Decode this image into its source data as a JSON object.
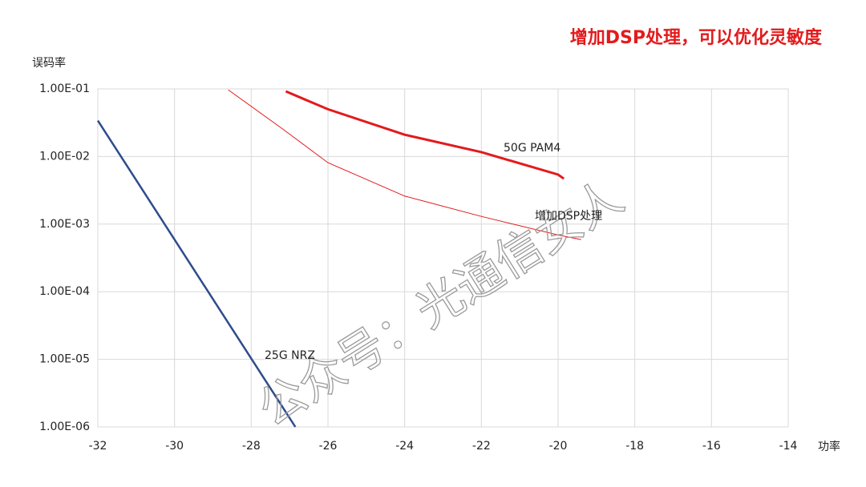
{
  "chart_data": {
    "type": "line",
    "title": "增加DSP处理，可以优化灵敏度",
    "y_label": "误码率",
    "x_label": "功率",
    "watermark": "公众号：光通信女人",
    "log_y": true,
    "grid": true,
    "xlim": [
      -32,
      -14
    ],
    "xticks": [
      -32,
      -30,
      -28,
      -26,
      -24,
      -22,
      -20,
      -18,
      -16,
      -14
    ],
    "ylim": [
      1e-06,
      0.1
    ],
    "yticks": [
      {
        "value": 0.1,
        "label": "1.00E-01"
      },
      {
        "value": 0.01,
        "label": "1.00E-02"
      },
      {
        "value": 0.001,
        "label": "1.00E-03"
      },
      {
        "value": 0.0001,
        "label": "1.00E-04"
      },
      {
        "value": 1e-05,
        "label": "1.00E-05"
      },
      {
        "value": 1e-06,
        "label": "1.00E-06"
      }
    ],
    "series": [
      {
        "name": "50G PAM4",
        "color": "#e31a1c",
        "x": [
          -27.1,
          -26,
          -24,
          -22,
          -20,
          -19.85
        ],
        "values": [
          0.092,
          0.05,
          0.021,
          0.0116,
          0.0054,
          0.0047
        ]
      },
      {
        "name": "增加DSP处理",
        "color": "#e31a1c",
        "x": [
          -28.6,
          -27.2,
          -26,
          -24,
          -22,
          -20,
          -19.4
        ],
        "values": [
          0.097,
          0.026,
          0.0081,
          0.0026,
          0.0013,
          0.00069,
          0.00059
        ]
      },
      {
        "name": "25G NRZ",
        "color": "#2f4b8c",
        "x": [
          -32,
          -26.85
        ],
        "values": [
          0.034,
          1e-06
        ]
      }
    ]
  }
}
